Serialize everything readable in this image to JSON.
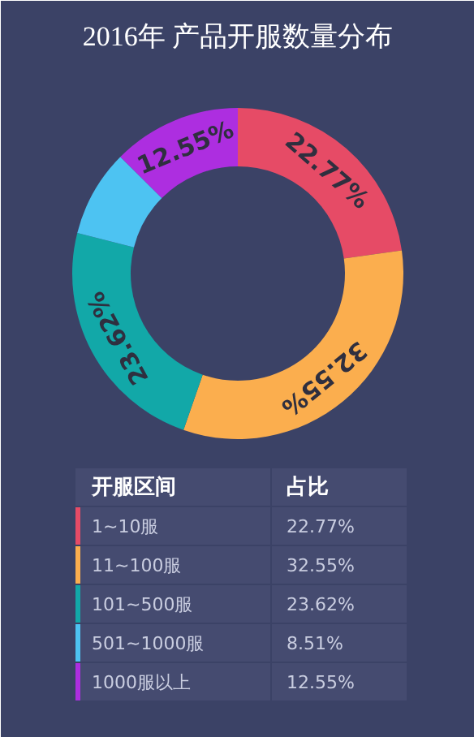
{
  "chart_data": {
    "type": "donut",
    "title": "2016年 产品开服数量分布",
    "categories": [
      "1~10服",
      "11~100服",
      "101~500服",
      "501~1000服",
      "1000服以上"
    ],
    "values": [
      22.77,
      32.55,
      23.62,
      8.51,
      12.55
    ],
    "colors": [
      "#e64b66",
      "#fbae4e",
      "#12a8a8",
      "#4dc3f2",
      "#ad2ee0"
    ],
    "value_labels": [
      "22.77%",
      "32.55%",
      "23.62%",
      "8.51%",
      "12.55%"
    ],
    "annotations": [
      "开服区间",
      "占比"
    ],
    "legend": "bottom"
  }
}
